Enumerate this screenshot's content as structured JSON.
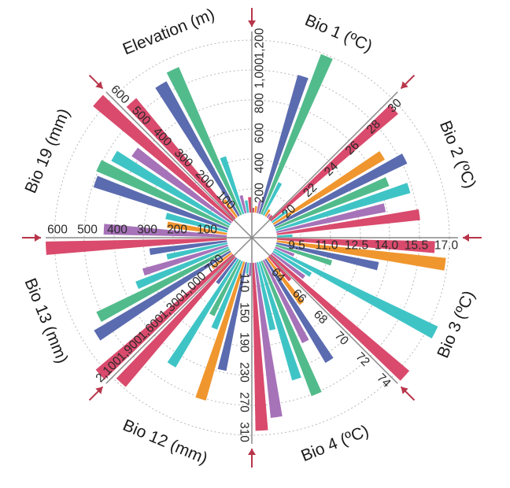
{
  "chart_data": {
    "type": "radial-bar",
    "title": "",
    "colors": {
      "red": "#d94a6c",
      "blue": "#5b6bb0",
      "green": "#52bb8c",
      "teal": "#3fc4c6",
      "orange": "#f0962e",
      "purple": "#a672b8",
      "arrow": "#b8354a",
      "axis": "#8a8a8a",
      "grid": "#b8b8b8"
    },
    "variables": [
      {
        "name": "Elevation (m)",
        "ticks": [
          "200",
          "400",
          "600",
          "800",
          "1,000",
          "1,200"
        ]
      },
      {
        "name": "Bio 1 (ºC)",
        "ticks": [
          "20",
          "22",
          "24",
          "26",
          "28",
          "30"
        ]
      },
      {
        "name": "Bio 2 (ºC)",
        "ticks": [
          "9.5",
          "11.0",
          "12.5",
          "14.0",
          "15.5",
          "17.0"
        ]
      },
      {
        "name": "Bio 3 (ºC)",
        "ticks": [
          "64",
          "66",
          "68",
          "70",
          "72",
          "74"
        ]
      },
      {
        "name": "Bio 4 (ºC)",
        "ticks": [
          "110",
          "150",
          "190",
          "230",
          "270",
          "310"
        ]
      },
      {
        "name": "Bio 12 (mm)",
        "ticks": [
          "700",
          "1,000",
          "1,300",
          "1,600",
          "1,900",
          "2,100"
        ]
      },
      {
        "name": "Bio 13 (mm)",
        "ticks": [
          "100",
          "200",
          "300",
          "400",
          "500",
          "600"
        ]
      },
      {
        "name": "Bio 19 (mm)",
        "ticks": [
          "100",
          "200",
          "300",
          "400",
          "500",
          "600"
        ]
      }
    ],
    "bars": [
      {
        "variable": "Elevation (m)",
        "series": "red",
        "value": 20
      },
      {
        "variable": "Elevation (m)",
        "series": "orange",
        "value": 80
      },
      {
        "variable": "Elevation (m)",
        "series": "purple",
        "value": 120
      },
      {
        "variable": "Elevation (m)",
        "series": "blue",
        "value": 1000
      },
      {
        "variable": "Elevation (m)",
        "series": "green",
        "value": 1180
      },
      {
        "variable": "Elevation (m)",
        "series": "teal",
        "value": 280
      },
      {
        "variable": "Elevation (m)",
        "series": "orange",
        "value": 90
      },
      {
        "variable": "Elevation (m)",
        "series": "purple",
        "value": 60
      },
      {
        "variable": "Elevation (m)",
        "series": "red",
        "value": 40
      },
      {
        "variable": "Bio 1 (ºC)",
        "series": "red",
        "value": 29.5
      },
      {
        "variable": "Bio 1 (ºC)",
        "series": "teal",
        "value": 19.6
      },
      {
        "variable": "Bio 1 (ºC)",
        "series": "orange",
        "value": 27
      },
      {
        "variable": "Bio 1 (ºC)",
        "series": "blue",
        "value": 28.2
      },
      {
        "variable": "Bio 1 (ºC)",
        "series": "green",
        "value": 26.5
      },
      {
        "variable": "Bio 1 (ºC)",
        "series": "teal",
        "value": 27.7
      },
      {
        "variable": "Bio 1 (ºC)",
        "series": "purple",
        "value": 25.8
      },
      {
        "variable": "Bio 1 (ºC)",
        "series": "red",
        "value": 28
      },
      {
        "variable": "Bio 1 (ºC)",
        "series": "teal",
        "value": 19.4
      },
      {
        "variable": "Bio 2 (ºC)",
        "series": "red",
        "value": 16.2
      },
      {
        "variable": "Bio 2 (ºC)",
        "series": "orange",
        "value": 16.8
      },
      {
        "variable": "Bio 2 (ºC)",
        "series": "blue",
        "value": 13.5
      },
      {
        "variable": "Bio 2 (ºC)",
        "series": "green",
        "value": 11.2
      },
      {
        "variable": "Bio 2 (ºC)",
        "series": "purple",
        "value": 9.3
      },
      {
        "variable": "Bio 2 (ºC)",
        "series": "teal",
        "value": 17.6
      },
      {
        "variable": "Bio 2 (ºC)",
        "series": "teal",
        "value": 10.5
      },
      {
        "variable": "Bio 2 (ºC)",
        "series": "purple",
        "value": 10.3
      },
      {
        "variable": "Bio 2 (ºC)",
        "series": "red",
        "value": 17.9
      },
      {
        "variable": "Bio 3 (ºC)",
        "series": "red",
        "value": 64.5
      },
      {
        "variable": "Bio 3 (ºC)",
        "series": "orange",
        "value": 66.2
      },
      {
        "variable": "Bio 3 (ºC)",
        "series": "blue",
        "value": 70.4
      },
      {
        "variable": "Bio 3 (ºC)",
        "series": "purple",
        "value": 68.5
      },
      {
        "variable": "Bio 3 (ºC)",
        "series": "green",
        "value": 72
      },
      {
        "variable": "Bio 3 (ºC)",
        "series": "teal",
        "value": 70.6
      },
      {
        "variable": "Bio 3 (ºC)",
        "series": "teal",
        "value": 67
      },
      {
        "variable": "Bio 3 (ºC)",
        "series": "purple",
        "value": 72.8
      },
      {
        "variable": "Bio 3 (ºC)",
        "series": "red",
        "value": 73.6
      },
      {
        "variable": "Bio 4 (ºC)",
        "series": "purple",
        "value": 95
      },
      {
        "variable": "Bio 4 (ºC)",
        "series": "teal",
        "value": 92
      },
      {
        "variable": "Bio 4 (ºC)",
        "series": "blue",
        "value": 225
      },
      {
        "variable": "Bio 4 (ºC)",
        "series": "orange",
        "value": 270
      },
      {
        "variable": "Bio 4 (ºC)",
        "series": "teal",
        "value": 175
      },
      {
        "variable": "Bio 4 (ºC)",
        "series": "green",
        "value": 160
      },
      {
        "variable": "Bio 4 (ºC)",
        "series": "teal",
        "value": 245
      },
      {
        "variable": "Bio 4 (ºC)",
        "series": "blue",
        "value": 120
      },
      {
        "variable": "Bio 4 (ºC)",
        "series": "red",
        "value": 305
      },
      {
        "variable": "Bio 12 (mm)",
        "series": "red",
        "value": 2150
      },
      {
        "variable": "Bio 12 (mm)",
        "series": "orange",
        "value": 700
      },
      {
        "variable": "Bio 12 (mm)",
        "series": "blue",
        "value": 1950
      },
      {
        "variable": "Bio 12 (mm)",
        "series": "green",
        "value": 1850
      },
      {
        "variable": "Bio 12 (mm)",
        "series": "teal",
        "value": 1400
      },
      {
        "variable": "Bio 12 (mm)",
        "series": "purple",
        "value": 1300
      },
      {
        "variable": "Bio 12 (mm)",
        "series": "teal",
        "value": 1050
      },
      {
        "variable": "Bio 12 (mm)",
        "series": "blue",
        "value": 1200
      },
      {
        "variable": "Bio 12 (mm)",
        "series": "red",
        "value": 2250
      },
      {
        "variable": "Bio 13 (mm)",
        "series": "purple",
        "value": 430
      },
      {
        "variable": "Bio 13 (mm)",
        "series": "orange",
        "value": 220
      },
      {
        "variable": "Bio 13 (mm)",
        "series": "teal",
        "value": 230
      },
      {
        "variable": "Bio 13 (mm)",
        "series": "blue",
        "value": 490
      },
      {
        "variable": "Bio 13 (mm)",
        "series": "green",
        "value": 500
      },
      {
        "variable": "Bio 13 (mm)",
        "series": "teal",
        "value": 470
      },
      {
        "variable": "Bio 13 (mm)",
        "series": "purple",
        "value": 420
      },
      {
        "variable": "Bio 13 (mm)",
        "series": "red",
        "value": 640
      },
      {
        "variable": "Bio 19 (mm)",
        "series": "red",
        "value": 540
      },
      {
        "variable": "Bio 19 (mm)",
        "series": "orange",
        "value": 90
      },
      {
        "variable": "Bio 19 (mm)",
        "series": "blue",
        "value": 530
      },
      {
        "variable": "Bio 19 (mm)",
        "series": "green",
        "value": 555
      },
      {
        "variable": "Bio 19 (mm)",
        "series": "teal",
        "value": 220
      },
      {
        "variable": "Bio 19 (mm)",
        "series": "purple",
        "value": 80
      },
      {
        "variable": "Bio 19 (mm)",
        "series": "teal",
        "value": 60
      },
      {
        "variable": "Bio 19 (mm)",
        "series": "red",
        "value": 70
      }
    ]
  }
}
